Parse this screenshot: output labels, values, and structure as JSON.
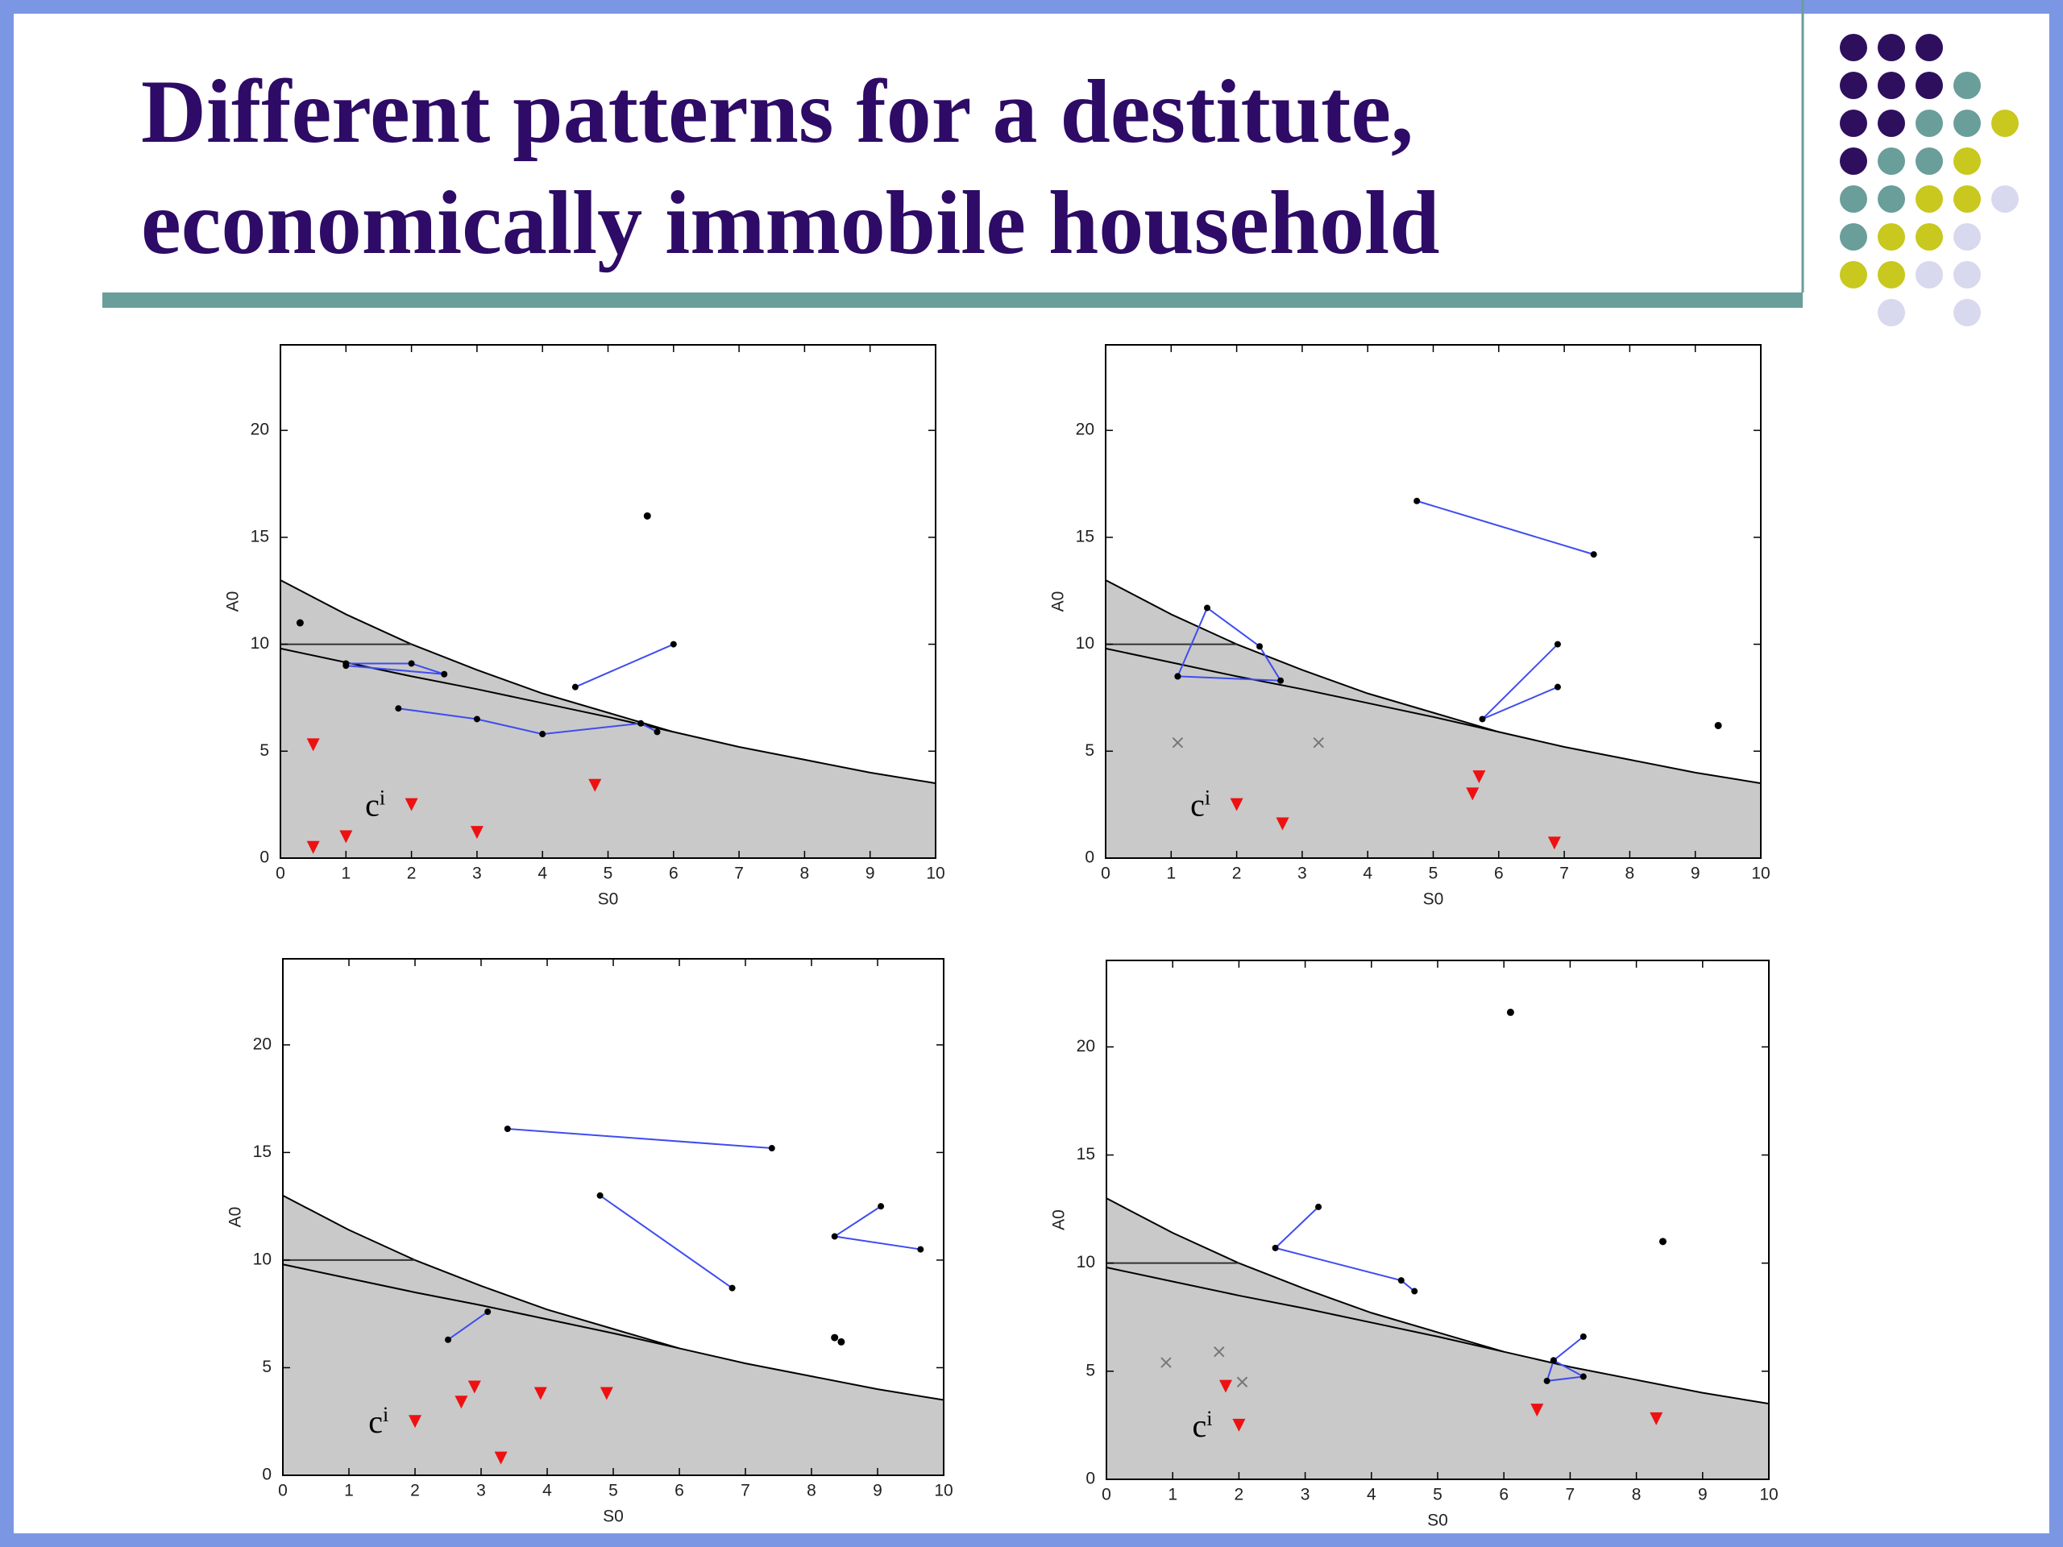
{
  "title": [
    "Different patterns for a destitute,",
    "economically immobile household"
  ],
  "colors": {
    "path": "#3f4cf0",
    "point": "#000000",
    "triangle": "#ee1111",
    "cross": "#777777",
    "shade": "#c9c9c9"
  },
  "chart_data": [
    {
      "type": "scatter",
      "xlabel": "S0",
      "ylabel": "A0",
      "xlim": [
        0,
        10
      ],
      "ylim": [
        0,
        24
      ],
      "xticks": [
        0,
        1,
        2,
        3,
        4,
        5,
        6,
        7,
        8,
        9,
        10
      ],
      "yticks": [
        0,
        5,
        10,
        15,
        20
      ],
      "boundary": {
        "x": [
          0,
          1,
          2,
          3,
          4,
          5,
          6,
          7,
          8,
          9,
          10
        ],
        "upper": [
          13,
          11.4,
          10.0,
          8.8,
          7.7,
          6.8,
          5.9,
          5.2,
          4.6,
          4.0,
          3.5
        ],
        "lower": [
          9.8,
          9.15,
          8.5,
          7.9,
          7.25,
          6.6,
          5.9,
          null,
          null,
          null,
          null
        ]
      },
      "level": {
        "x": [
          0,
          2
        ],
        "values": [
          10,
          10
        ]
      },
      "paths": [
        {
          "x": [
            1.0,
            2.0,
            2.5,
            1.0
          ],
          "values": [
            9.1,
            9.1,
            8.6,
            9.0
          ]
        },
        {
          "x": [
            4.5,
            6.0
          ],
          "values": [
            8.0,
            10.0
          ]
        },
        {
          "x": [
            1.8,
            3.0,
            4.0,
            5.5,
            5.75
          ],
          "values": [
            7.0,
            6.5,
            5.8,
            6.3,
            5.9
          ]
        }
      ],
      "points": {
        "x": [
          5.6,
          0.3
        ],
        "values": [
          16.0,
          11.0
        ]
      },
      "triangles": {
        "x": [
          0.5,
          0.5,
          1.0,
          2.0,
          3.0,
          4.8
        ],
        "values": [
          5.3,
          0.5,
          1.0,
          2.5,
          1.2,
          3.4
        ]
      },
      "crosses": {
        "x": [],
        "values": []
      },
      "annotation": {
        "text": "c",
        "superscript": "i",
        "x": 1.6,
        "y": 2.5
      }
    },
    {
      "type": "scatter",
      "xlabel": "S0",
      "ylabel": "A0",
      "xlim": [
        0,
        10
      ],
      "ylim": [
        0,
        24
      ],
      "xticks": [
        0,
        1,
        2,
        3,
        4,
        5,
        6,
        7,
        8,
        9,
        10
      ],
      "yticks": [
        0,
        5,
        10,
        15,
        20
      ],
      "boundary": {
        "x": [
          0,
          1,
          2,
          3,
          4,
          5,
          6,
          7,
          8,
          9,
          10
        ],
        "upper": [
          13,
          11.4,
          10.0,
          8.8,
          7.7,
          6.8,
          5.9,
          5.2,
          4.6,
          4.0,
          3.5
        ],
        "lower": [
          9.8,
          9.15,
          8.5,
          7.9,
          7.25,
          6.6,
          5.9,
          null,
          null,
          null,
          null
        ]
      },
      "level": {
        "x": [
          0,
          2
        ],
        "values": [
          10,
          10
        ]
      },
      "paths": [
        {
          "x": [
            4.75,
            7.45
          ],
          "values": [
            16.7,
            14.2
          ]
        },
        {
          "x": [
            1.1,
            1.55,
            2.35,
            2.67,
            1.1
          ],
          "values": [
            8.5,
            11.7,
            9.9,
            8.3,
            8.5
          ]
        },
        {
          "x": [
            6.9,
            5.75,
            6.9
          ],
          "values": [
            10.0,
            6.5,
            8.0
          ]
        }
      ],
      "points": {
        "x": [
          9.35
        ],
        "values": [
          6.2
        ]
      },
      "triangles": {
        "x": [
          2.0,
          2.7,
          5.7,
          5.6,
          6.85
        ],
        "values": [
          2.5,
          1.6,
          3.8,
          3.0,
          0.7
        ]
      },
      "crosses": {
        "x": [
          1.1,
          3.25
        ],
        "values": [
          5.4,
          5.4
        ]
      },
      "annotation": {
        "text": "c",
        "superscript": "i",
        "x": 1.6,
        "y": 2.5
      }
    },
    {
      "type": "scatter",
      "xlabel": "S0",
      "ylabel": "A0",
      "xlim": [
        0,
        10
      ],
      "ylim": [
        0,
        24
      ],
      "xticks": [
        0,
        1,
        2,
        3,
        4,
        5,
        6,
        7,
        8,
        9,
        10
      ],
      "yticks": [
        0,
        5,
        10,
        15,
        20
      ],
      "boundary": {
        "x": [
          0,
          1,
          2,
          3,
          4,
          5,
          6,
          7,
          8,
          9,
          10
        ],
        "upper": [
          13,
          11.4,
          10.0,
          8.8,
          7.7,
          6.8,
          5.9,
          5.2,
          4.6,
          4.0,
          3.5
        ],
        "lower": [
          9.8,
          9.15,
          8.5,
          7.9,
          7.25,
          6.6,
          5.9,
          null,
          null,
          null,
          null
        ]
      },
      "level": {
        "x": [
          0,
          2
        ],
        "values": [
          10,
          10
        ]
      },
      "paths": [
        {
          "x": [
            3.4,
            7.4
          ],
          "values": [
            16.1,
            15.2
          ]
        },
        {
          "x": [
            4.8,
            6.8
          ],
          "values": [
            13.0,
            8.7
          ]
        },
        {
          "x": [
            9.05,
            8.35,
            9.65
          ],
          "values": [
            12.5,
            11.1,
            10.5
          ]
        },
        {
          "x": [
            2.5,
            3.1
          ],
          "values": [
            6.3,
            7.6
          ]
        }
      ],
      "points": {
        "x": [
          8.35,
          8.45
        ],
        "values": [
          6.4,
          6.2
        ]
      },
      "triangles": {
        "x": [
          2.0,
          2.7,
          2.9,
          3.3,
          3.9,
          4.9
        ],
        "values": [
          2.5,
          3.4,
          4.1,
          0.8,
          3.8,
          3.8
        ]
      },
      "crosses": {
        "x": [],
        "values": []
      },
      "annotation": {
        "text": "c",
        "superscript": "i",
        "x": 1.6,
        "y": 2.5
      }
    },
    {
      "type": "scatter",
      "xlabel": "S0",
      "ylabel": "A0",
      "xlim": [
        0,
        10
      ],
      "ylim": [
        0,
        24
      ],
      "xticks": [
        0,
        1,
        2,
        3,
        4,
        5,
        6,
        7,
        8,
        9,
        10
      ],
      "yticks": [
        0,
        5,
        10,
        15,
        20
      ],
      "boundary": {
        "x": [
          0,
          1,
          2,
          3,
          4,
          5,
          6,
          7,
          8,
          9,
          10
        ],
        "upper": [
          13,
          11.4,
          10.0,
          8.8,
          7.7,
          6.8,
          5.9,
          5.2,
          4.6,
          4.0,
          3.5
        ],
        "lower": [
          9.8,
          9.15,
          8.5,
          7.9,
          7.25,
          6.6,
          5.9,
          null,
          null,
          null,
          null
        ]
      },
      "level": {
        "x": [
          0,
          2
        ],
        "values": [
          10,
          10
        ]
      },
      "paths": [
        {
          "x": [
            3.2,
            2.55,
            4.45,
            4.65
          ],
          "values": [
            12.6,
            10.7,
            9.2,
            8.7
          ]
        },
        {
          "x": [
            7.2,
            6.75,
            7.2,
            6.65,
            6.75
          ],
          "values": [
            6.6,
            5.5,
            4.75,
            4.55,
            5.5
          ]
        }
      ],
      "points": {
        "x": [
          6.1,
          8.4
        ],
        "values": [
          21.6,
          11.0
        ]
      },
      "triangles": {
        "x": [
          1.8,
          2.0,
          6.5,
          8.3
        ],
        "values": [
          4.3,
          2.5,
          3.2,
          2.8
        ]
      },
      "crosses": {
        "x": [
          0.9,
          1.7,
          2.05
        ],
        "values": [
          5.4,
          5.9,
          4.5
        ]
      },
      "annotation": {
        "text": "c",
        "superscript": "i",
        "x": 1.6,
        "y": 2.5
      }
    }
  ]
}
